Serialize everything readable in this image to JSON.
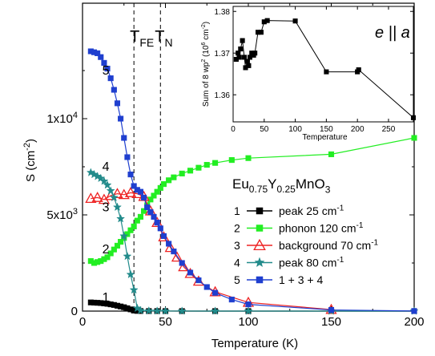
{
  "chart_data": [
    {
      "id": "main",
      "type": "line",
      "xlabel": "Temperature (K)",
      "ylabel": "S (cm",
      "ylabel_sup": "-2",
      "ylabel_tail": ")",
      "xlim": [
        0,
        200
      ],
      "ylim": [
        0,
        16000
      ],
      "x_ticks": [
        0,
        50,
        100,
        150,
        200
      ],
      "y_ticks": [
        {
          "value": 0,
          "base": "0",
          "exp": ""
        },
        {
          "value": 5000,
          "base": "5x10",
          "exp": "3"
        },
        {
          "value": 10000,
          "base": "1x10",
          "exp": "4"
        }
      ],
      "vlines": [
        {
          "x": 31,
          "label": "T",
          "sub": "FE"
        },
        {
          "x": 47,
          "label": "T",
          "sub": "N"
        }
      ],
      "annotation": {
        "text": "Eu",
        "sub1": "0.75",
        "mid": "Y",
        "sub2": "0.25",
        "tail": "MnO",
        "sub3": "3"
      },
      "legend": [
        {
          "num": "1",
          "text": "peak 25 cm",
          "sup": "-1"
        },
        {
          "num": "2",
          "text": "phonon 120 cm",
          "sup": "-1"
        },
        {
          "num": "3",
          "text": "background 70 cm",
          "sup": "-1"
        },
        {
          "num": "4",
          "text": "peak 80 cm",
          "sup": "-1"
        },
        {
          "num": "5",
          "text": "1 + 3 + 4",
          "sup": ""
        }
      ],
      "series": [
        {
          "name": "peak 25 cm-1",
          "label": "1",
          "color": "#000000",
          "marker": "square",
          "label_at": [
            9,
            700
          ],
          "x": [
            5,
            7,
            9,
            11,
            13,
            15,
            17,
            19,
            21,
            23,
            25,
            27,
            29,
            31,
            33,
            35,
            40,
            45,
            50,
            60,
            80,
            100,
            150,
            200
          ],
          "y": [
            450,
            440,
            430,
            420,
            400,
            380,
            350,
            320,
            280,
            240,
            200,
            150,
            90,
            30,
            10,
            5,
            3,
            2,
            2,
            1,
            1,
            1,
            0,
            0
          ]
        },
        {
          "name": "phonon 120 cm-1",
          "label": "2",
          "color": "#22ee22",
          "marker": "square",
          "label_at": [
            9,
            3200
          ],
          "x": [
            5,
            7,
            9,
            11,
            13,
            15,
            17,
            19,
            21,
            23,
            25,
            27,
            29,
            31,
            33,
            35,
            37,
            39,
            41,
            43,
            45,
            47,
            49,
            52,
            55,
            60,
            65,
            70,
            75,
            80,
            90,
            100,
            150,
            200
          ],
          "y": [
            2600,
            2500,
            2550,
            2600,
            2700,
            2800,
            3000,
            3200,
            3400,
            3600,
            3800,
            4000,
            4200,
            4400,
            4700,
            4900,
            5200,
            5500,
            5800,
            6000,
            6200,
            6400,
            6600,
            6800,
            6950,
            7150,
            7300,
            7450,
            7600,
            7700,
            7850,
            7950,
            8150,
            9000
          ]
        },
        {
          "name": "background 70 cm-1",
          "label": "3",
          "color": "#ee2222",
          "marker": "triangle",
          "label_at": [
            9,
            5400
          ],
          "x": [
            5,
            9,
            13,
            17,
            21,
            25,
            29,
            33,
            37,
            41,
            45,
            49,
            53,
            57,
            61,
            65,
            70,
            80,
            100,
            150
          ],
          "y": [
            5850,
            5900,
            5800,
            6000,
            6100,
            6050,
            6150,
            6100,
            5950,
            5200,
            4600,
            3850,
            3300,
            2800,
            2300,
            1950,
            1550,
            1000,
            450,
            80
          ]
        },
        {
          "name": "peak 80 cm-1",
          "label": "4",
          "color": "#228b8b",
          "marker": "star",
          "label_at": [
            9,
            7500
          ],
          "x": [
            5,
            7,
            9,
            11,
            13,
            15,
            17,
            19,
            21,
            23,
            25,
            27,
            29,
            31,
            33,
            35,
            40,
            45,
            50,
            60,
            80,
            100,
            150,
            200
          ],
          "y": [
            7200,
            7100,
            7000,
            6900,
            6750,
            6550,
            6250,
            5900,
            5400,
            4800,
            3900,
            2850,
            1900,
            1100,
            150,
            30,
            10,
            5,
            3,
            2,
            1,
            1,
            0,
            0
          ]
        },
        {
          "name": "1 + 3 + 4",
          "label": "5",
          "color": "#1f3fcf",
          "marker": "square",
          "label_at": [
            9,
            12500
          ],
          "x": [
            5,
            7,
            9,
            11,
            13,
            15,
            17,
            19,
            21,
            23,
            25,
            27,
            29,
            31,
            33,
            35,
            37,
            39,
            41,
            43,
            45,
            47,
            49,
            52,
            55,
            60,
            65,
            70,
            75,
            80,
            90,
            100,
            150,
            200
          ],
          "y": [
            13500,
            13450,
            13400,
            13200,
            12900,
            12600,
            12100,
            11500,
            10800,
            10000,
            9000,
            8000,
            7100,
            6500,
            6300,
            6200,
            5900,
            5400,
            5150,
            4900,
            4600,
            4300,
            3900,
            3500,
            3100,
            2500,
            2000,
            1600,
            1250,
            950,
            600,
            350,
            60,
            5
          ]
        }
      ]
    },
    {
      "id": "inset",
      "type": "line",
      "xlabel": "Temperature",
      "ylabel": "Sum of 8 wp",
      "ylabel_sup": "2",
      "ylabel_tail": " (10",
      "ylabel_sup2": "6",
      "ylabel_tail2": " cm",
      "ylabel_sup3": "-2",
      "ylabel_end": ")",
      "annotation": "e || a",
      "xlim": [
        0,
        290
      ],
      "ylim": [
        1.3535,
        1.3812
      ],
      "x_ticks": [
        0,
        50,
        100,
        150,
        200,
        250
      ],
      "y_ticks": [
        1.36,
        1.37,
        1.38
      ],
      "series": [
        {
          "name": "sum",
          "color": "#000000",
          "marker": "square",
          "x": [
            5,
            8,
            10,
            12,
            15,
            18,
            20,
            23,
            25,
            27,
            30,
            33,
            35,
            40,
            45,
            50,
            55,
            100,
            150,
            200,
            202,
            290
          ],
          "y": [
            1.3685,
            1.37,
            1.369,
            1.371,
            1.373,
            1.369,
            1.3665,
            1.368,
            1.367,
            1.369,
            1.37,
            1.3695,
            1.37,
            1.375,
            1.375,
            1.3775,
            1.3778,
            1.3777,
            1.3655,
            1.3655,
            1.366,
            1.3545
          ]
        }
      ]
    }
  ]
}
